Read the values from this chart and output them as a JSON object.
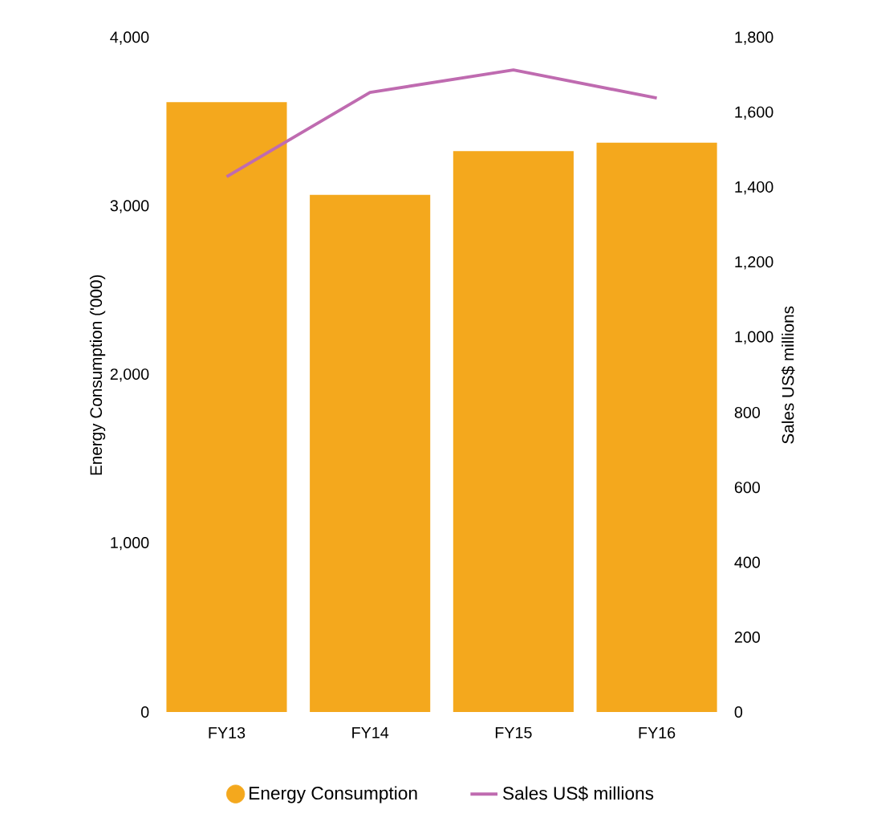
{
  "chart_data": {
    "type": "bar",
    "categories": [
      "FY13",
      "FY14",
      "FY15",
      "FY16"
    ],
    "ylabel": "Energy Consumption ('000)",
    "y2label": "Sales US$ millions",
    "ylim": [
      0,
      4000
    ],
    "yticks": [
      0,
      {
        "value": 1000,
        "label": "1,000"
      },
      {
        "value": 2000,
        "label": "2,000"
      },
      {
        "value": 3000,
        "label": "3,000"
      },
      {
        "value": 4000,
        "label": "4,000"
      }
    ],
    "y2lim": [
      0,
      1800
    ],
    "y2ticks": [
      0,
      200,
      400,
      600,
      800,
      {
        "value": 1000,
        "label": "1,000"
      },
      {
        "value": 1200,
        "label": "1,200"
      },
      {
        "value": 1400,
        "label": "1,400"
      },
      {
        "value": 1600,
        "label": "1,600"
      },
      {
        "value": 1800,
        "label": "1,800"
      }
    ],
    "legend": "bottom",
    "series": [
      {
        "name": "Energy Consumption",
        "color": "#f4a81d",
        "values": [
          3620,
          3070,
          3330,
          3380
        ]
      },
      {
        "name": "Sales US$ millions",
        "type": "line",
        "axis": "y2",
        "color": "#bf6bb0",
        "values": [
          1430,
          1655,
          1715,
          1640
        ]
      }
    ]
  }
}
